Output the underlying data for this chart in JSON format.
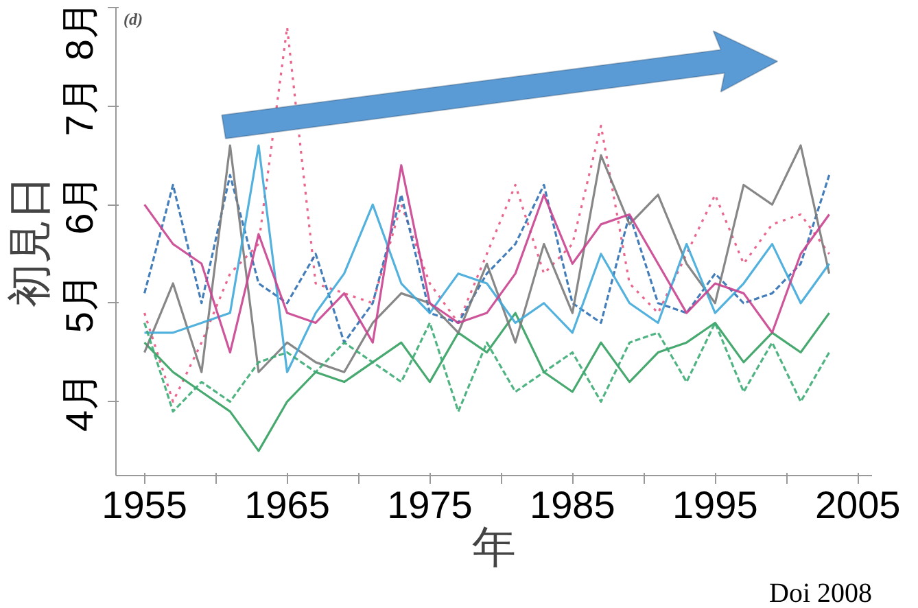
{
  "chart_data": {
    "type": "line",
    "xlabel": "年",
    "ylabel": "初見日",
    "x": [
      1955,
      1957,
      1959,
      1961,
      1963,
      1965,
      1967,
      1969,
      1971,
      1973,
      1975,
      1977,
      1979,
      1981,
      1983,
      1985,
      1987,
      1989,
      1991,
      1993,
      1995,
      1997,
      1999,
      2001,
      2003
    ],
    "xlim": [
      1953,
      2006
    ],
    "ylim": [
      3.25,
      8.0
    ],
    "xticks": [
      1955,
      {
        "value": 1960,
        "label": null
      },
      1965,
      {
        "value": 1970,
        "label": null
      },
      1975,
      {
        "value": 1980,
        "label": null
      },
      1985,
      {
        "value": 1990,
        "label": null
      },
      1995,
      {
        "value": 2000,
        "label": null
      },
      2005
    ],
    "yticks": [
      {
        "value": 4,
        "label": "4月"
      },
      {
        "value": 5,
        "label": "5月"
      },
      {
        "value": 6,
        "label": "6月"
      },
      {
        "value": 7,
        "label": "7月"
      },
      {
        "value": 8,
        "label": "8月"
      }
    ],
    "grid": false,
    "marker": "none",
    "series": [
      {
        "color": "#e8557f",
        "line_style": "dotted",
        "values": [
          4.9,
          4.0,
          4.6,
          5.3,
          5.6,
          7.8,
          5.2,
          5.1,
          5.0,
          6.0,
          5.2,
          4.8,
          5.5,
          6.2,
          5.3,
          5.6,
          6.8,
          5.2,
          4.9,
          5.5,
          6.1,
          5.4,
          5.8,
          5.9,
          5.5
        ]
      },
      {
        "color": "#2f6fb3",
        "line_style": "dashed",
        "values": [
          5.1,
          6.2,
          5.0,
          6.3,
          5.2,
          5.0,
          5.5,
          4.6,
          5.0,
          6.1,
          4.9,
          4.8,
          5.3,
          5.6,
          6.2,
          5.0,
          4.8,
          5.9,
          5.0,
          4.9,
          5.3,
          5.0,
          5.1,
          5.4,
          6.3
        ]
      },
      {
        "color": "#34a061",
        "line_style": "solid",
        "values": [
          4.6,
          4.3,
          4.1,
          3.9,
          3.5,
          4.0,
          4.3,
          4.2,
          4.4,
          4.6,
          4.2,
          4.7,
          4.5,
          4.9,
          4.3,
          4.1,
          4.6,
          4.2,
          4.5,
          4.6,
          4.8,
          4.4,
          4.7,
          4.5,
          4.9
        ]
      },
      {
        "color": "#7a7a7a",
        "line_style": "solid",
        "values": [
          4.5,
          5.2,
          4.3,
          6.6,
          4.3,
          4.6,
          4.4,
          4.3,
          4.8,
          5.1,
          5.0,
          4.7,
          5.4,
          4.6,
          5.6,
          4.9,
          6.5,
          5.8,
          6.1,
          5.4,
          5.0,
          6.2,
          6.0,
          6.6,
          5.3
        ]
      },
      {
        "color": "#3fa9d9",
        "line_style": "solid",
        "values": [
          4.7,
          4.7,
          4.8,
          4.9,
          6.6,
          4.3,
          4.9,
          5.3,
          6.0,
          5.2,
          4.9,
          5.3,
          5.2,
          4.8,
          5.0,
          4.7,
          5.5,
          5.0,
          4.8,
          5.6,
          4.9,
          5.2,
          5.6,
          5.0,
          5.4
        ]
      },
      {
        "color": "#c9438f",
        "line_style": "solid",
        "values": [
          6.0,
          5.6,
          5.4,
          4.5,
          5.7,
          4.9,
          4.8,
          5.1,
          4.6,
          6.4,
          5.0,
          4.8,
          4.9,
          5.3,
          6.1,
          5.4,
          5.8,
          5.9,
          5.4,
          4.9,
          5.2,
          5.1,
          4.7,
          5.5,
          5.9
        ]
      },
      {
        "color": "#3cab74",
        "line_style": "dashed",
        "values": [
          4.8,
          3.9,
          4.2,
          4.0,
          4.4,
          4.5,
          4.3,
          4.6,
          4.4,
          4.2,
          4.8,
          3.9,
          4.6,
          4.1,
          4.3,
          4.5,
          4.0,
          4.6,
          4.7,
          4.2,
          4.8,
          4.1,
          4.6,
          4.0,
          4.5
        ]
      }
    ],
    "annotations": [
      "(d)",
      "Doi 2008"
    ]
  }
}
